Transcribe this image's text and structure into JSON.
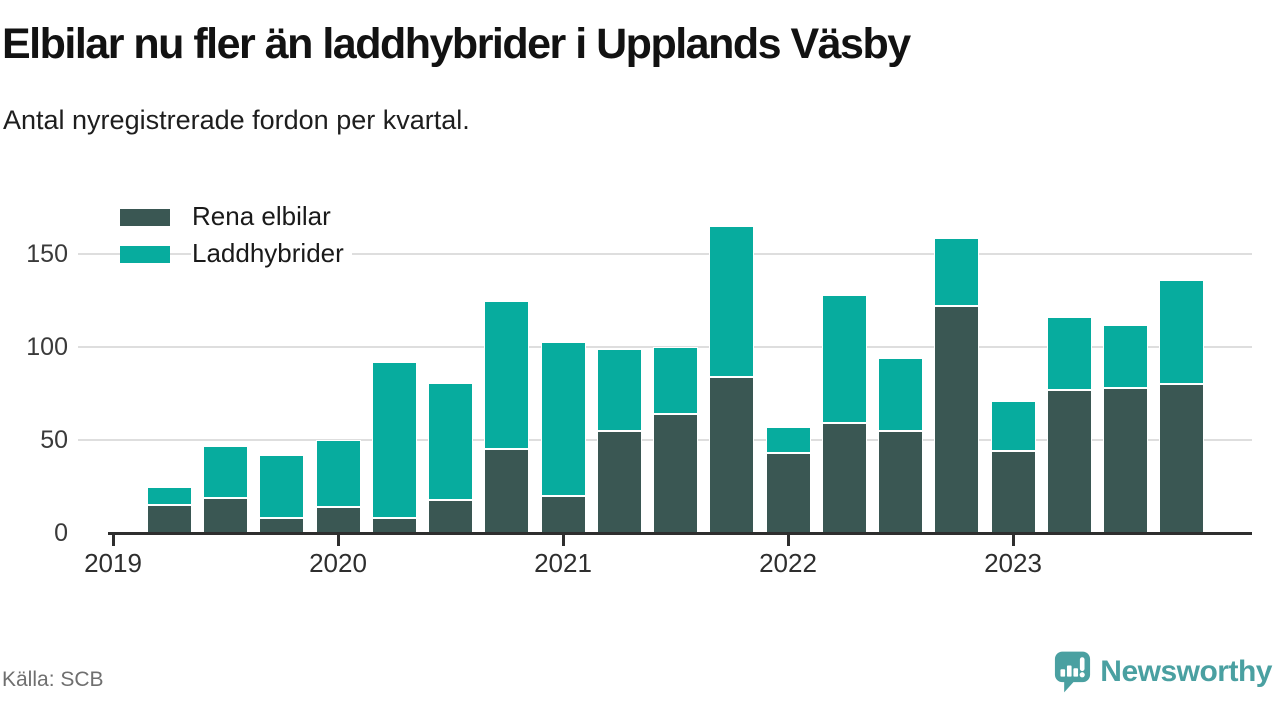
{
  "header": {
    "title": "Elbilar nu fler än laddhybrider i Upplands Väsby",
    "subtitle": "Antal nyregistrerade fordon per kvartal."
  },
  "legend": {
    "items": [
      {
        "label": "Rena elbilar",
        "color": "#3a5753"
      },
      {
        "label": "Laddhybrider",
        "color": "#07ac9e"
      }
    ]
  },
  "footer": {
    "source": "Källa: SCB",
    "brand_name": "Newsworthy",
    "brand_color": "#4aa0a1",
    "brand_icon": "newsworthy-bubble-chart-icon"
  },
  "chart_data": {
    "type": "bar",
    "stacked": true,
    "title": "Elbilar nu fler än laddhybrider i Upplands Väsby",
    "subtitle": "Antal nyregistrerade fordon per kvartal.",
    "categories": [
      "2019Q1",
      "2019Q2",
      "2019Q3",
      "2019Q4",
      "2020Q1",
      "2020Q2",
      "2020Q3",
      "2020Q4",
      "2021Q1",
      "2021Q2",
      "2021Q3",
      "2021Q4",
      "2022Q1",
      "2022Q2",
      "2022Q3",
      "2022Q4",
      "2023Q1",
      "2023Q2",
      "2023Q3"
    ],
    "series": [
      {
        "name": "Rena elbilar",
        "color": "#3a5753",
        "values": [
          15,
          19,
          8,
          14,
          8,
          18,
          45,
          20,
          55,
          64,
          84,
          43,
          59,
          55,
          122,
          44,
          77,
          78,
          80
        ]
      },
      {
        "name": "Laddhybrider",
        "color": "#07ac9e",
        "values": [
          10,
          28,
          34,
          36,
          84,
          63,
          80,
          83,
          44,
          36,
          81,
          14,
          69,
          39,
          37,
          27,
          39,
          34,
          56
        ]
      }
    ],
    "x_tick_labels": [
      "2019",
      "2020",
      "2021",
      "2022",
      "2023"
    ],
    "y_ticks": [
      0,
      50,
      100,
      150
    ],
    "ylim": [
      0,
      172
    ],
    "grid": "horizontal",
    "legend_position": "top-left-inside",
    "axis_color": "#2e2e2e",
    "gridline_color": "#dedede"
  }
}
